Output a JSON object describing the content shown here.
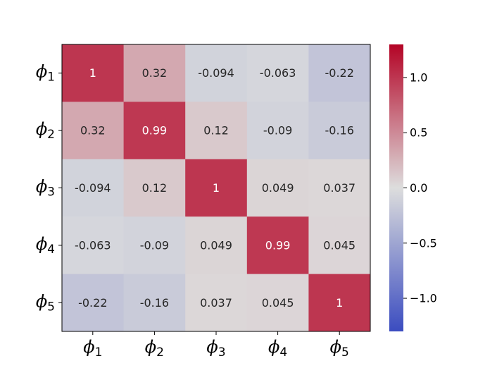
{
  "chart_data": {
    "type": "heatmap",
    "title": "",
    "xlabel": "",
    "ylabel": "",
    "row_labels": [
      {
        "base": "ϕ",
        "sub": "1"
      },
      {
        "base": "ϕ",
        "sub": "2"
      },
      {
        "base": "ϕ",
        "sub": "3"
      },
      {
        "base": "ϕ",
        "sub": "4"
      },
      {
        "base": "ϕ",
        "sub": "5"
      }
    ],
    "col_labels": [
      {
        "base": "ϕ",
        "sub": "1"
      },
      {
        "base": "ϕ",
        "sub": "2"
      },
      {
        "base": "ϕ",
        "sub": "3"
      },
      {
        "base": "ϕ",
        "sub": "4"
      },
      {
        "base": "ϕ",
        "sub": "5"
      }
    ],
    "values": [
      [
        1,
        0.32,
        -0.094,
        -0.063,
        -0.22
      ],
      [
        0.32,
        0.99,
        0.12,
        -0.09,
        -0.16
      ],
      [
        -0.094,
        0.12,
        1,
        0.049,
        0.037
      ],
      [
        -0.063,
        -0.09,
        0.049,
        0.99,
        0.045
      ],
      [
        -0.22,
        -0.16,
        0.037,
        0.045,
        1
      ]
    ],
    "cell_labels": [
      [
        "1",
        "0.32",
        "-0.094",
        "-0.063",
        "-0.22"
      ],
      [
        "0.32",
        "0.99",
        "0.12",
        "-0.09",
        "-0.16"
      ],
      [
        "-0.094",
        "0.12",
        "1",
        "0.049",
        "0.037"
      ],
      [
        "-0.063",
        "-0.09",
        "0.049",
        "0.99",
        "0.045"
      ],
      [
        "-0.22",
        "-0.16",
        "0.037",
        "0.045",
        "1"
      ]
    ],
    "colormap": "coolwarm",
    "vmin": -1.3,
    "vmax": 1.3,
    "colorbar": {
      "ticks": [
        -1.0,
        -0.5,
        0.0,
        0.5,
        1.0
      ],
      "tick_labels": [
        "−1.0",
        "−0.5",
        "0.0",
        "0.5",
        "1.0"
      ]
    },
    "colors": {
      "cmap_low": "#3b4cc0",
      "cmap_mid": "#dddddd",
      "cmap_high": "#b40426",
      "text_dark": "#262626",
      "text_light": "#ffffff"
    }
  }
}
